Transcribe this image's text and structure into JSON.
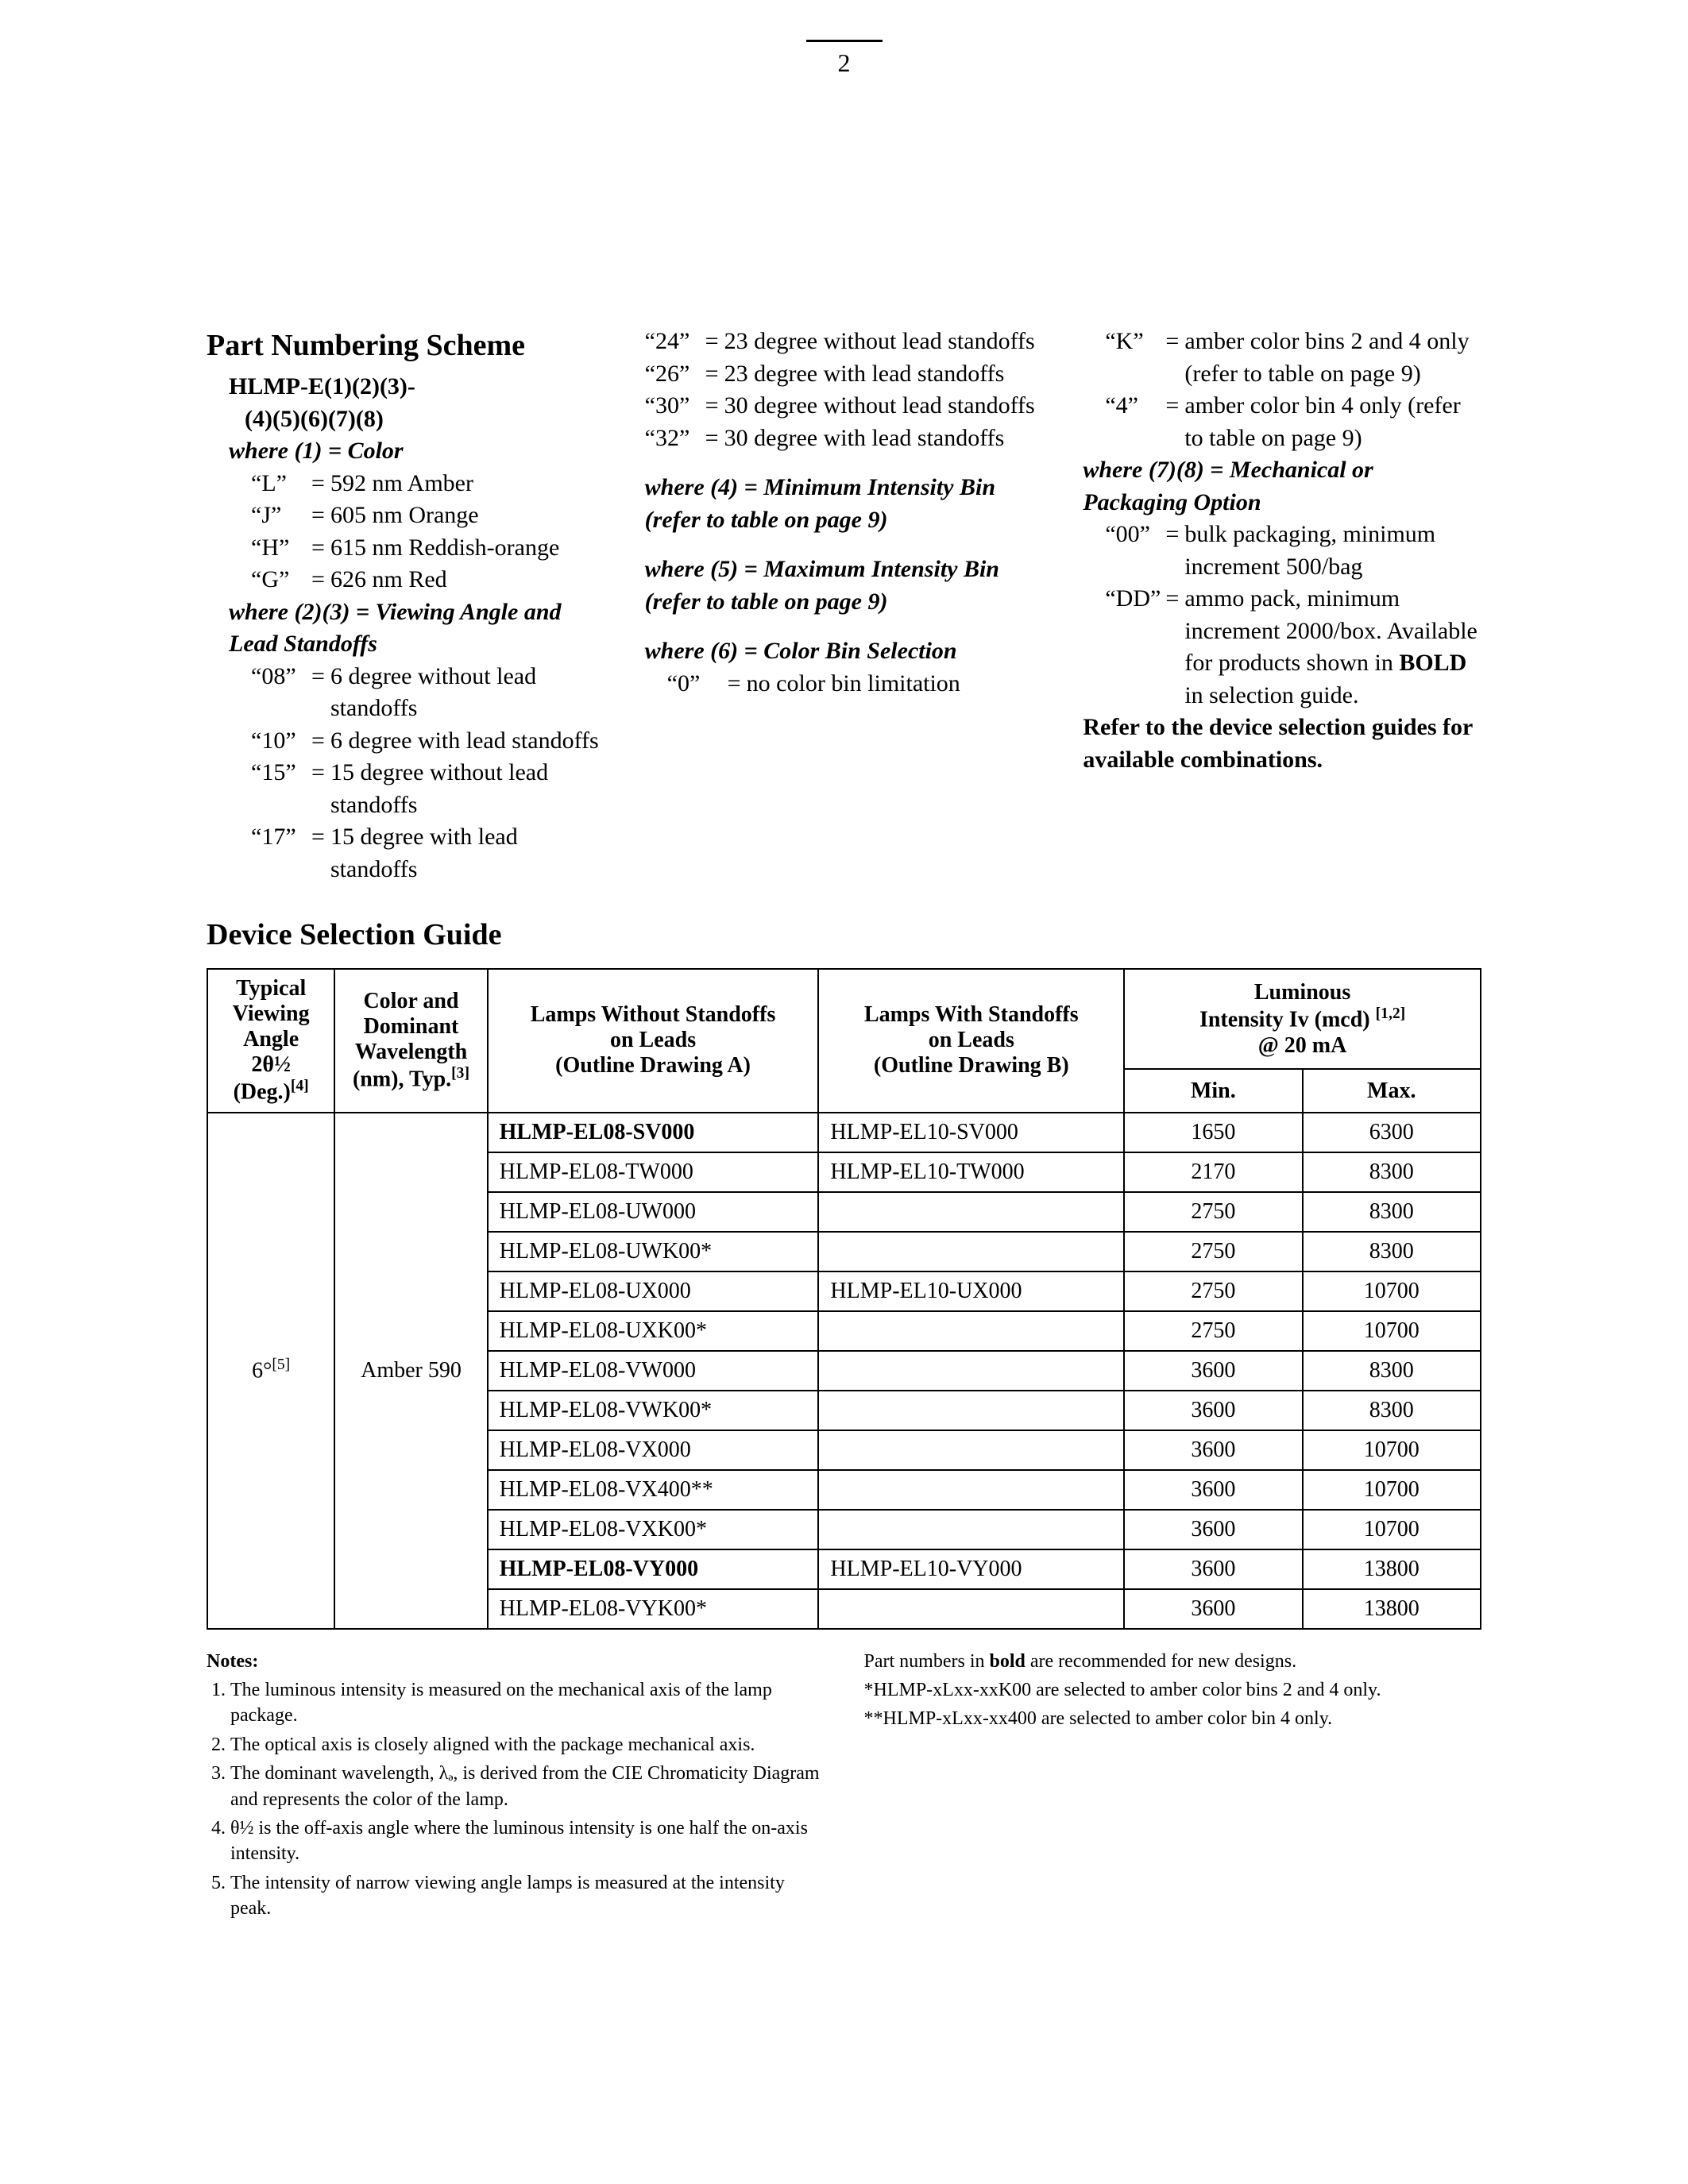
{
  "page_number": "2",
  "section_title": "Part Numbering Scheme",
  "hlmp_line1": "HLMP-E(1)(2)(3)-",
  "hlmp_line2": "(4)(5)(6)(7)(8)",
  "where1_head": "where (1) = Color",
  "where1_items": [
    {
      "k": "“L”",
      "v": "592 nm Amber"
    },
    {
      "k": "“J”",
      "v": "605 nm Orange"
    },
    {
      "k": "“H”",
      "v": "615 nm Reddish-orange"
    },
    {
      "k": "“G”",
      "v": "626 nm Red"
    }
  ],
  "where23_head": "where (2)(3) = Viewing Angle and Lead Standoffs",
  "where23_items": [
    {
      "k": "“08”",
      "v": "6 degree without lead standoffs"
    },
    {
      "k": "“10”",
      "v": "6 degree with lead standoffs"
    },
    {
      "k": "“15”",
      "v": "15 degree without lead standoffs"
    },
    {
      "k": "“17”",
      "v": "15 degree with lead standoffs"
    },
    {
      "k": "“24”",
      "v": "23 degree without lead standoffs"
    },
    {
      "k": "“26”",
      "v": "23 degree with lead standoffs"
    },
    {
      "k": "“30”",
      "v": "30 degree without lead standoffs"
    },
    {
      "k": "“32”",
      "v": "30 degree with lead standoffs"
    }
  ],
  "where4_head": "where (4) = Minimum Intensity Bin (refer to table on page 9)",
  "where5_head": "where (5) = Maximum Intensity Bin (refer to table on page 9)",
  "where6_head": "where (6) = Color Bin Selection",
  "where6_items": [
    {
      "k": "“0”",
      "v": "no color bin limitation"
    },
    {
      "k": "“K”",
      "v": "amber color bins 2 and 4 only (refer to table on page 9)"
    },
    {
      "k": "“4”",
      "v": "amber color bin 4 only (refer to table on page 9)"
    }
  ],
  "where78_head": "where (7)(8) = Mechanical or Packaging Option",
  "where78_items": [
    {
      "k": "“00”",
      "v": "bulk packaging, minimum increment 500/bag"
    },
    {
      "k": "“DD”",
      "v_pre": "ammo pack, minimum increment 2000/box. Available for products shown in ",
      "v_bold": "BOLD",
      "v_post": " in selection guide."
    }
  ],
  "refer_text": "Refer to the device selection guides for available combinations.",
  "device_guide_title": "Device Selection Guide",
  "table": {
    "head": {
      "col1_l1": "Typical",
      "col1_l2": "Viewing",
      "col1_l3": "Angle",
      "col1_l4_html": "2θ½",
      "col1_l5": "(Deg.)",
      "col1_sup": "[4]",
      "col2_l1": "Color and",
      "col2_l2": "Dominant",
      "col2_l3": "Wavelength",
      "col2_l4": "(nm), Typ.",
      "col2_sup": "[3]",
      "col3_l1": "Lamps Without Standoffs",
      "col3_l2": "on Leads",
      "col3_l3": "(Outline Drawing A)",
      "col4_l1": "Lamps With Standoffs",
      "col4_l2": "on Leads",
      "col4_l3": "(Outline Drawing B)",
      "col56_l1": "Luminous",
      "col56_l2_pre": "Intensity Iv (mcd) ",
      "col56_sup": "[1,2]",
      "col56_l3": "@ 20 mA",
      "col5": "Min.",
      "col6": "Max."
    },
    "angle_label": "6°",
    "angle_sup": "[5]",
    "color_label": "Amber 590",
    "rows": [
      {
        "a": "HLMP-EL08-SV000",
        "abold": true,
        "b": "HLMP-EL10-SV000",
        "min": "1650",
        "max": "6300"
      },
      {
        "a": "HLMP-EL08-TW000",
        "abold": false,
        "b": "HLMP-EL10-TW000",
        "min": "2170",
        "max": "8300"
      },
      {
        "a": "HLMP-EL08-UW000",
        "abold": false,
        "b": "",
        "min": "2750",
        "max": "8300"
      },
      {
        "a": "HLMP-EL08-UWK00*",
        "abold": false,
        "b": "",
        "min": "2750",
        "max": "8300"
      },
      {
        "a": "HLMP-EL08-UX000",
        "abold": false,
        "b": "HLMP-EL10-UX000",
        "min": "2750",
        "max": "10700"
      },
      {
        "a": "HLMP-EL08-UXK00*",
        "abold": false,
        "b": "",
        "min": "2750",
        "max": "10700"
      },
      {
        "a": "HLMP-EL08-VW000",
        "abold": false,
        "b": "",
        "min": "3600",
        "max": "8300"
      },
      {
        "a": "HLMP-EL08-VWK00*",
        "abold": false,
        "b": "",
        "min": "3600",
        "max": "8300"
      },
      {
        "a": "HLMP-EL08-VX000",
        "abold": false,
        "b": "",
        "min": "3600",
        "max": "10700"
      },
      {
        "a": "HLMP-EL08-VX400**",
        "abold": false,
        "b": "",
        "min": "3600",
        "max": "10700"
      },
      {
        "a": "HLMP-EL08-VXK00*",
        "abold": false,
        "b": "",
        "min": "3600",
        "max": "10700"
      },
      {
        "a": "HLMP-EL08-VY000",
        "abold": true,
        "b": "HLMP-EL10-VY000",
        "min": "3600",
        "max": "13800"
      },
      {
        "a": "HLMP-EL08-VYK00*",
        "abold": false,
        "b": "",
        "min": "3600",
        "max": "13800"
      }
    ]
  },
  "notes_title": "Notes:",
  "notes": [
    "The luminous intensity is measured on the mechanical axis of the lamp package.",
    "The optical axis is closely aligned with the package mechanical axis.",
    "The dominant wavelength, λₔ, is derived from the CIE Chromaticity Diagram and represents the color of the lamp.",
    "θ½ is the off-axis angle where the luminous intensity is one half the on-axis intensity.",
    "The intensity of narrow viewing angle lamps is measured at the intensity peak."
  ],
  "notes_right": {
    "l1_pre": "Part numbers in ",
    "l1_bold": "bold",
    "l1_post": " are recommended for new designs.",
    "l2": "*HLMP-xLxx-xxK00 are selected to amber color bins 2 and 4 only.",
    "l3": "**HLMP-xLxx-xx400 are selected to amber color bin 4 only."
  }
}
